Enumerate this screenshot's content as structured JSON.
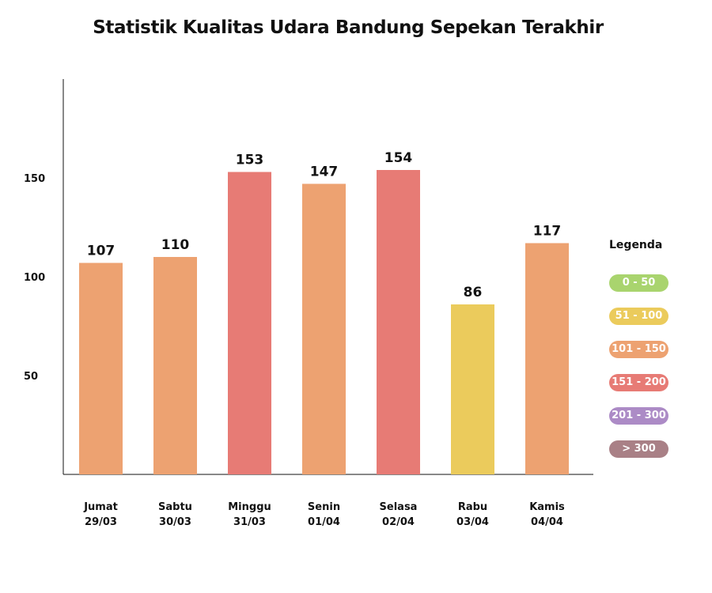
{
  "chart_data": {
    "type": "bar",
    "title": "Statistik Kualitas Udara Bandung Sepekan Terakhir",
    "xlabel": "",
    "ylabel": "",
    "ylim": [
      0,
      200
    ],
    "yticks": [
      50,
      100,
      150
    ],
    "categories": [
      [
        "Jumat",
        "29/03"
      ],
      [
        "Sabtu",
        "30/03"
      ],
      [
        "Minggu",
        "31/03"
      ],
      [
        "Senin",
        "01/04"
      ],
      [
        "Selasa",
        "02/04"
      ],
      [
        "Rabu",
        "03/04"
      ],
      [
        "Kamis",
        "04/04"
      ]
    ],
    "values": [
      107,
      110,
      153,
      147,
      154,
      86,
      117
    ],
    "grid": false,
    "legend_position": "right",
    "legend": {
      "title": "Legenda",
      "items": [
        {
          "label": "0 - 50",
          "color": "#a9d46e"
        },
        {
          "label": "51 - 100",
          "color": "#ebcb5c"
        },
        {
          "label": "101 - 150",
          "color": "#eda271"
        },
        {
          "label": "151 - 200",
          "color": "#e77b75"
        },
        {
          "label": "201 - 300",
          "color": "#ac8bc6"
        },
        {
          "label": "> 300",
          "color": "#a98086"
        }
      ]
    }
  }
}
